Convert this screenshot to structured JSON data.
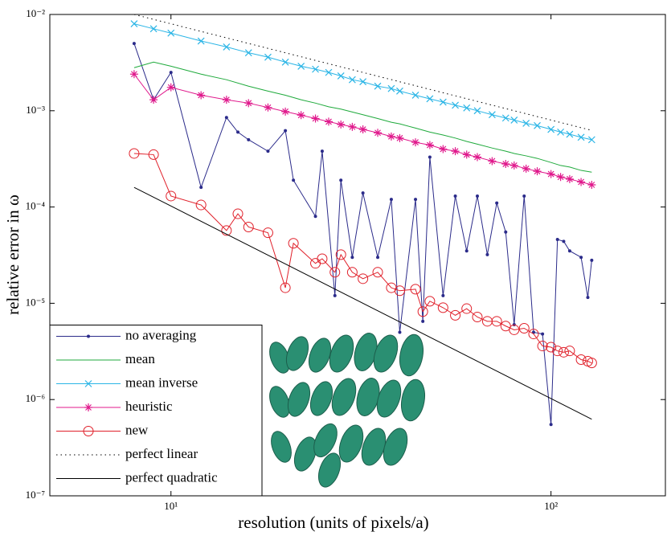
{
  "chart_data": {
    "type": "line",
    "xlabel": "resolution (units of pixels/a)",
    "ylabel": "relative error in ω",
    "log_x": true,
    "log_y": true,
    "xlim": [
      4.8,
      200
    ],
    "ylim": [
      1e-07,
      0.01
    ],
    "xticks": [
      {
        "value": 10,
        "label": "10¹"
      },
      {
        "value": 100,
        "label": "10²"
      }
    ],
    "yticks": [
      {
        "value": 1e-07,
        "label": "10⁻⁷"
      },
      {
        "value": 1e-06,
        "label": "10⁻⁶"
      },
      {
        "value": 1e-05,
        "label": "10⁻⁵"
      },
      {
        "value": 0.0001,
        "label": "10⁻⁴"
      },
      {
        "value": 0.001,
        "label": "10⁻³"
      },
      {
        "value": 0.01,
        "label": "10⁻²"
      }
    ],
    "legend": "lower left",
    "series": [
      {
        "name": "no averaging",
        "color": "#2b2b8a",
        "marker": "dot",
        "linestyle": "solid",
        "x": [
          8,
          9,
          10,
          12,
          14,
          15,
          16,
          18,
          20,
          21,
          24,
          25,
          27,
          28,
          30,
          32,
          35,
          38,
          40,
          44,
          46,
          48,
          52,
          56,
          60,
          64,
          68,
          72,
          76,
          80,
          85,
          90,
          95,
          100,
          104,
          108,
          112,
          120,
          125,
          128
        ],
        "values": [
          0.005,
          0.0013,
          0.0025,
          0.00016,
          0.00085,
          0.0006,
          0.0005,
          0.00038,
          0.00062,
          0.00019,
          8e-05,
          0.00038,
          1.2e-05,
          0.00019,
          3e-05,
          0.00014,
          3e-05,
          0.00012,
          5e-06,
          0.00012,
          6.5e-06,
          0.00033,
          1.2e-05,
          0.00013,
          3.5e-05,
          0.00013,
          3.2e-05,
          0.00011,
          5.5e-05,
          6e-06,
          0.00013,
          5e-06,
          4.8e-06,
          5.5e-07,
          4.6e-05,
          4.4e-05,
          3.5e-05,
          3e-05,
          1.15e-05,
          2.8e-05
        ]
      },
      {
        "name": "mean",
        "color": "#1faa3c",
        "marker": "none",
        "linestyle": "solid",
        "x": [
          8,
          9,
          10,
          12,
          14,
          16,
          18,
          20,
          22,
          24,
          26,
          28,
          30,
          32,
          35,
          38,
          40,
          44,
          48,
          52,
          56,
          60,
          64,
          70,
          76,
          80,
          86,
          92,
          100,
          106,
          112,
          120,
          128
        ],
        "values": [
          0.0028,
          0.0032,
          0.0029,
          0.0024,
          0.0021,
          0.0018,
          0.0016,
          0.00145,
          0.0013,
          0.0012,
          0.0011,
          0.00104,
          0.00097,
          0.00091,
          0.00083,
          0.00076,
          0.00073,
          0.00066,
          0.0006,
          0.00056,
          0.00052,
          0.00048,
          0.00045,
          0.00041,
          0.00038,
          0.00036,
          0.00034,
          0.00032,
          0.00029,
          0.00027,
          0.00026,
          0.00024,
          0.00023
        ]
      },
      {
        "name": "mean inverse",
        "color": "#2bb5e6",
        "marker": "x",
        "linestyle": "solid",
        "x": [
          8,
          9,
          10,
          12,
          14,
          16,
          18,
          20,
          22,
          24,
          26,
          28,
          30,
          32,
          35,
          38,
          40,
          44,
          48,
          52,
          56,
          60,
          64,
          70,
          76,
          80,
          86,
          92,
          100,
          106,
          112,
          120,
          128
        ],
        "values": [
          0.008,
          0.0071,
          0.0064,
          0.0053,
          0.0046,
          0.004,
          0.0036,
          0.0032,
          0.0029,
          0.0027,
          0.0025,
          0.0023,
          0.0021,
          0.002,
          0.0018,
          0.0017,
          0.0016,
          0.00145,
          0.00133,
          0.00123,
          0.00114,
          0.00107,
          0.001,
          0.00091,
          0.00084,
          0.0008,
          0.00074,
          0.0007,
          0.00064,
          0.0006,
          0.00057,
          0.00053,
          0.0005
        ]
      },
      {
        "name": "heuristic",
        "color": "#e0198c",
        "marker": "asterisk",
        "linestyle": "solid",
        "x": [
          8,
          9,
          10,
          12,
          14,
          16,
          18,
          20,
          22,
          24,
          26,
          28,
          30,
          32,
          35,
          38,
          40,
          44,
          48,
          52,
          56,
          60,
          64,
          70,
          76,
          80,
          86,
          92,
          100,
          106,
          112,
          120,
          128
        ],
        "values": [
          0.0024,
          0.0013,
          0.00175,
          0.00145,
          0.0013,
          0.0012,
          0.00108,
          0.00098,
          0.0009,
          0.00083,
          0.00077,
          0.00072,
          0.00068,
          0.00064,
          0.00059,
          0.00054,
          0.00052,
          0.00047,
          0.00044,
          0.0004,
          0.00038,
          0.00035,
          0.00033,
          0.0003,
          0.00028,
          0.00027,
          0.00025,
          0.000235,
          0.00022,
          0.000205,
          0.000195,
          0.000182,
          0.00017
        ]
      },
      {
        "name": "new",
        "color": "#e0202a",
        "marker": "circle",
        "linestyle": "solid",
        "x": [
          8,
          9,
          10,
          12,
          14,
          15,
          16,
          18,
          20,
          21,
          24,
          25,
          27,
          28,
          30,
          32,
          35,
          38,
          40,
          44,
          46,
          48,
          52,
          56,
          60,
          64,
          68,
          72,
          76,
          80,
          85,
          90,
          95,
          100,
          104,
          108,
          112,
          120,
          125,
          128
        ],
        "values": [
          0.00036,
          0.00035,
          0.00013,
          0.000105,
          5.7e-05,
          8.5e-05,
          6.2e-05,
          5.4e-05,
          1.45e-05,
          4.2e-05,
          2.6e-05,
          2.9e-05,
          2.1e-05,
          3.2e-05,
          2.1e-05,
          1.8e-05,
          2.1e-05,
          1.45e-05,
          1.35e-05,
          1.4e-05,
          8.2e-06,
          1.05e-05,
          9e-06,
          7.5e-06,
          8.8e-06,
          7.2e-06,
          6.5e-06,
          6.5e-06,
          5.8e-06,
          5.3e-06,
          5.5e-06,
          4.8e-06,
          3.6e-06,
          3.5e-06,
          3.2e-06,
          3.1e-06,
          3.2e-06,
          2.6e-06,
          2.5e-06,
          2.4e-06
        ]
      },
      {
        "name": "perfect linear",
        "color": "#000000",
        "marker": "none",
        "linestyle": "dotted",
        "x": [
          8,
          128
        ],
        "values": [
          0.01,
          0.000625
        ]
      },
      {
        "name": "perfect quadratic",
        "color": "#000000",
        "marker": "none",
        "linestyle": "solid",
        "x": [
          8,
          128
        ],
        "values": [
          0.00016,
          6.25e-07
        ]
      }
    ]
  }
}
